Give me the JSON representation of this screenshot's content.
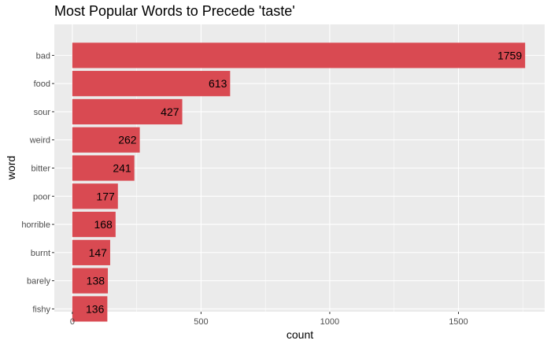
{
  "chart_data": {
    "type": "bar",
    "orientation": "horizontal",
    "title": "Most Popular Words to Precede 'taste'",
    "xlabel": "count",
    "ylabel": "word",
    "categories": [
      "bad",
      "food",
      "sour",
      "weird",
      "bitter",
      "poor",
      "horrible",
      "burnt",
      "barely",
      "fishy"
    ],
    "values": [
      1759,
      613,
      427,
      262,
      241,
      177,
      168,
      147,
      138,
      136
    ],
    "xlim": [
      -70,
      1835
    ],
    "xticks": [
      0,
      500,
      1000,
      1500
    ],
    "xtick_labels": [
      "0",
      "500",
      "1000",
      "1500"
    ],
    "bar_color": "#d94a52",
    "panel_background": "#ebebeb",
    "grid": true
  }
}
